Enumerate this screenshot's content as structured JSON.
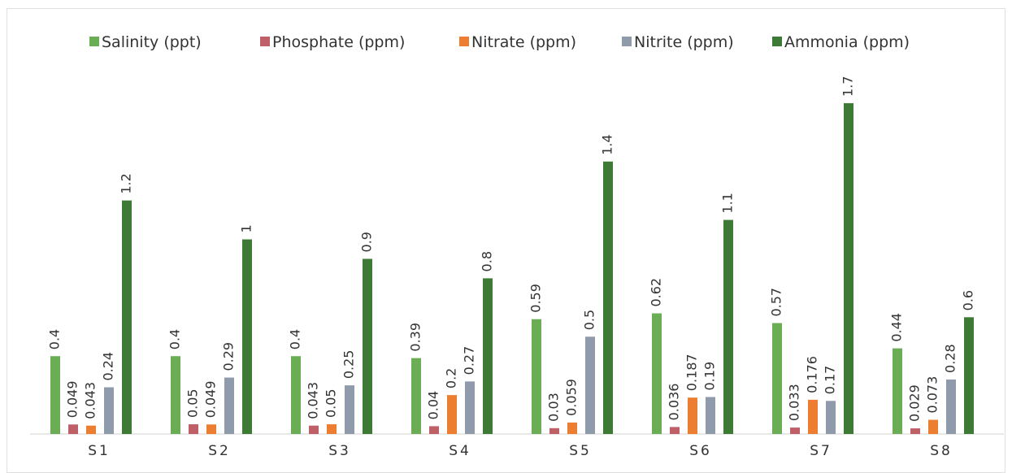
{
  "chart_data": {
    "type": "bar",
    "categories": [
      "S1",
      "S2",
      "S3",
      "S4",
      "S5",
      "S6",
      "S7",
      "S8"
    ],
    "series": [
      {
        "name": "Salinity (ppt)",
        "color": "#6aad55",
        "values": [
          0.4,
          0.4,
          0.4,
          0.39,
          0.59,
          0.62,
          0.57,
          0.44
        ]
      },
      {
        "name": "Phosphate (ppm)",
        "color": "#bf5f68",
        "values": [
          0.049,
          0.05,
          0.043,
          0.04,
          0.03,
          0.036,
          0.033,
          0.029
        ]
      },
      {
        "name": "Nitrate (ppm)",
        "color": "#ed7d31",
        "values": [
          0.043,
          0.049,
          0.05,
          0.2,
          0.059,
          0.187,
          0.176,
          0.073
        ]
      },
      {
        "name": "Nitrite (ppm)",
        "color": "#8f9aab",
        "values": [
          0.24,
          0.29,
          0.25,
          0.27,
          0.5,
          0.19,
          0.17,
          0.28
        ]
      },
      {
        "name": "Ammonia (ppm)",
        "color": "#3d7a35",
        "values": [
          1.2,
          1,
          0.9,
          0.8,
          1.4,
          1.1,
          1.7,
          0.6
        ]
      }
    ],
    "ylim": [
      0,
      1.8
    ]
  }
}
